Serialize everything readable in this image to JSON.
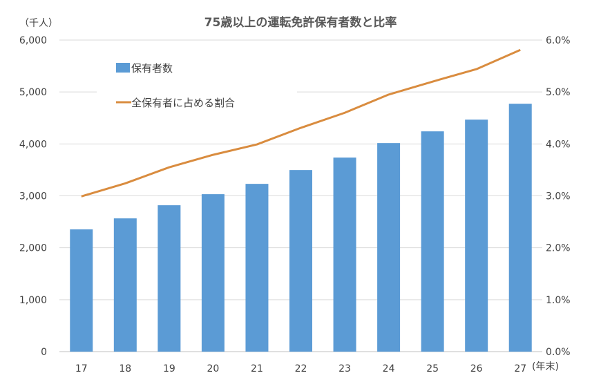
{
  "chart_data": {
    "type": "bar+line",
    "title": "75歳以上の運転免許保有者数と比率",
    "ylabel_left": "（千人）",
    "xlabel": "(年末)",
    "categories": [
      "17",
      "18",
      "19",
      "20",
      "21",
      "22",
      "23",
      "24",
      "25",
      "26",
      "27"
    ],
    "ylim_left": [
      0,
      6000
    ],
    "ylim_right": [
      0,
      6.0
    ],
    "yticks_left": [
      "0",
      "1,000",
      "2,000",
      "3,000",
      "4,000",
      "5,000",
      "6,000"
    ],
    "yticks_right": [
      "0.0%",
      "1.0%",
      "2.0%",
      "3.0%",
      "4.0%",
      "5.0%",
      "6.0%"
    ],
    "grid": true,
    "legend_position": "top-left",
    "series": [
      {
        "name": "保有者数",
        "type": "bar",
        "axis": "left",
        "color": "#5b9bd5",
        "values": [
          2354,
          2566,
          2819,
          3032,
          3231,
          3497,
          3737,
          4016,
          4242,
          4468,
          4774
        ]
      },
      {
        "name": "全保有者に占める割合",
        "type": "line",
        "axis": "right",
        "color": "#d98c3f",
        "values": [
          2.99,
          3.24,
          3.55,
          3.79,
          3.99,
          4.31,
          4.6,
          4.95,
          5.2,
          5.44,
          5.81
        ]
      }
    ]
  }
}
